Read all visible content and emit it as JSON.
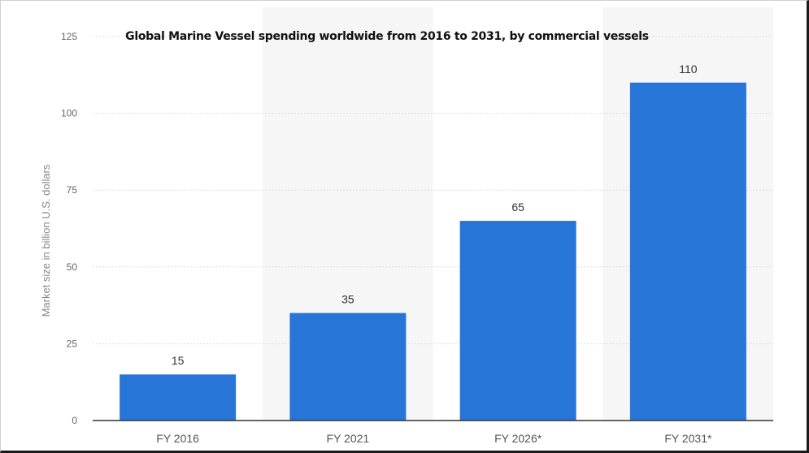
{
  "chart_data": {
    "type": "bar",
    "title": "Global Marine Vessel spending worldwide from 2016 to 2031, by commercial vessels",
    "xlabel": "",
    "ylabel": "Market size in billion U.S. dollars",
    "categories": [
      "FY 2016",
      "FY 2021",
      "FY 2026*",
      "FY 2031*"
    ],
    "values": [
      15,
      35,
      65,
      110
    ],
    "value_labels": [
      "15",
      "35",
      "65",
      "110"
    ],
    "ylim": [
      0,
      125
    ],
    "yticks": [
      "0",
      "25",
      "50",
      "75",
      "100",
      "125"
    ],
    "grid": true,
    "bar_color": "#2875d8",
    "band_color": "#f6f6f6",
    "grid_color": "#dcdcdc",
    "axis_text_color": "#666666"
  }
}
